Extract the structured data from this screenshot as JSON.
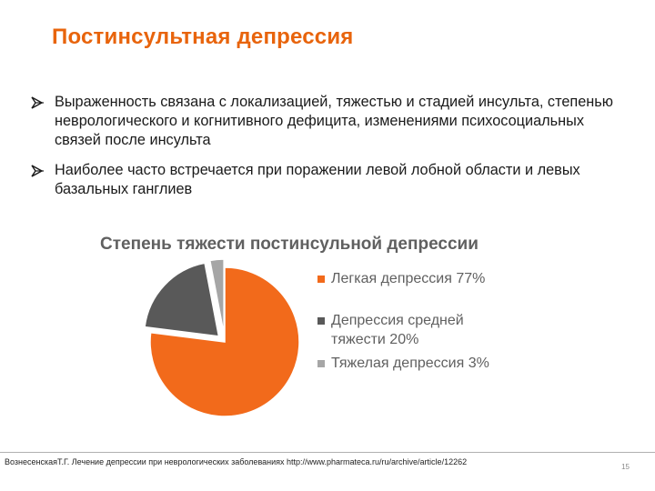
{
  "slide": {
    "title": "Постинсультная депрессия",
    "bullets": [
      "Выраженность связана с локализацией, тяжестью и стадией инсульта, степенью неврологического и когнитивного дефицита, изменениями психосоциальных связей после инсульта",
      "Наиболее часто встречается при поражении левой лобной области и левых базальных ганглиев"
    ],
    "source": "ВознесенскаяТ.Г.  Лечение депрессии при неврологических заболеваниях http://www.pharmateca.ru/ru/archive/article/12262",
    "page_number": "15",
    "accent_color": "#e8640c"
  },
  "chart_data": {
    "type": "pie",
    "title": "Степень тяжести постинсульной депрессии",
    "slices": [
      {
        "label": "Легкая депрессия 77%",
        "value": 77,
        "color": "#f26a1b"
      },
      {
        "label": "Депрессия средней тяжести 20%",
        "value": 20,
        "color": "#595959"
      },
      {
        "label": "Тяжелая депрессия 3%",
        "value": 3,
        "color": "#a6a6a6"
      }
    ],
    "legend_position": "right",
    "exploded": true
  }
}
